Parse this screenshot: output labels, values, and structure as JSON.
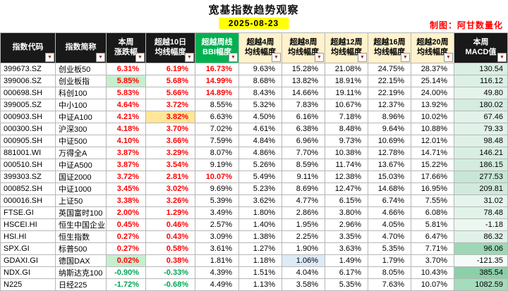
{
  "colors": {
    "up": "#ff0000",
    "down": "#00a651",
    "header_dark": "#191919",
    "header_green": "#00b050",
    "header_yellow": "#fff2cc",
    "date_bg": "#ffff00",
    "credit": "#ff0000"
  },
  "chart_data": {
    "type": "table",
    "title": "宽基指数趋势观察",
    "date": "2025-08-23",
    "credit": "制图：阿甘数量化",
    "columns": [
      {
        "id": "code",
        "label": "指数代码",
        "style": "dark",
        "w": 78
      },
      {
        "id": "name",
        "label": "指数简称",
        "style": "dark",
        "w": 72
      },
      {
        "id": "wk",
        "label": "本周\n涨跌幅",
        "style": "dark",
        "w": 56
      },
      {
        "id": "d10",
        "label": "超越10日\n均线幅度",
        "style": "dark",
        "w": 70
      },
      {
        "id": "bbi",
        "label": "超越周线\nBBI幅度",
        "style": "green",
        "w": 62
      },
      {
        "id": "w4",
        "label": "超越4周\n均线幅度",
        "style": "yellow",
        "w": 61
      },
      {
        "id": "w8",
        "label": "超越8周\n均线幅度",
        "style": "yellow",
        "w": 61
      },
      {
        "id": "w12",
        "label": "超越12周\n均线幅度",
        "style": "yellow",
        "w": 61
      },
      {
        "id": "w16",
        "label": "超越16周\n均线幅度",
        "style": "yellow",
        "w": 61
      },
      {
        "id": "w20",
        "label": "超越20周\n均线幅度",
        "style": "yellow",
        "w": 61
      },
      {
        "id": "macd",
        "label": "本周\nMACD值",
        "style": "dark",
        "w": 76
      }
    ],
    "rows": [
      {
        "code": "399673.SZ",
        "name": "创业板50",
        "wk": "6.31%",
        "d10": "6.19%",
        "bbi": "16.73%",
        "w4": "9.63%",
        "w8": "15.28%",
        "w12": "21.08%",
        "w16": "24.75%",
        "w20": "28.37%",
        "macd": "130.54",
        "macd_bg": "#dbefe4"
      },
      {
        "code": "399006.SZ",
        "name": "创业板指",
        "wk": "5.85%",
        "d10": "5.68%",
        "bbi": "14.99%",
        "w4": "8.68%",
        "w8": "13.82%",
        "w12": "18.91%",
        "w16": "22.15%",
        "w20": "25.14%",
        "macd": "116.12",
        "macd_bg": "#ddf0e6",
        "hl": {
          "wk": "#c6efce"
        }
      },
      {
        "code": "000698.SH",
        "name": "科创100",
        "wk": "5.83%",
        "d10": "5.66%",
        "bbi": "14.89%",
        "w4": "8.43%",
        "w8": "14.66%",
        "w12": "19.11%",
        "w16": "22.19%",
        "w20": "24.00%",
        "macd": "49.80",
        "macd_bg": "#e4f3eb"
      },
      {
        "code": "399005.SZ",
        "name": "中小100",
        "wk": "4.64%",
        "d10": "3.72%",
        "bbi": "8.55%",
        "w4": "5.32%",
        "w8": "7.83%",
        "w12": "10.67%",
        "w16": "12.37%",
        "w20": "13.92%",
        "macd": "180.02",
        "macd_bg": "#d5ece0"
      },
      {
        "code": "000903.SH",
        "name": "中证A100",
        "wk": "4.21%",
        "d10": "3.82%",
        "bbi": "6.63%",
        "w4": "4.50%",
        "w8": "6.16%",
        "w12": "7.18%",
        "w16": "8.96%",
        "w20": "10.02%",
        "macd": "67.46",
        "macd_bg": "#e2f2ea",
        "hl": {
          "d10": "#ffe699"
        }
      },
      {
        "code": "000300.SH",
        "name": "沪深300",
        "wk": "4.18%",
        "d10": "3.70%",
        "bbi": "7.02%",
        "w4": "4.61%",
        "w8": "6.38%",
        "w12": "8.48%",
        "w16": "9.64%",
        "w20": "10.88%",
        "macd": "79.33",
        "macd_bg": "#e1f2e9"
      },
      {
        "code": "000905.SH",
        "name": "中证500",
        "wk": "4.10%",
        "d10": "3.66%",
        "bbi": "7.59%",
        "w4": "4.84%",
        "w8": "6.96%",
        "w12": "9.73%",
        "w16": "10.69%",
        "w20": "12.01%",
        "macd": "98.48",
        "macd_bg": "#dff1e7"
      },
      {
        "code": "881001.WI",
        "name": "万得全A",
        "wk": "3.87%",
        "d10": "3.29%",
        "bbi": "8.07%",
        "w4": "4.86%",
        "w8": "7.70%",
        "w12": "10.38%",
        "w16": "12.78%",
        "w20": "14.71%",
        "macd": "146.21",
        "macd_bg": "#d9eee3"
      },
      {
        "code": "000510.SH",
        "name": "中证A500",
        "wk": "3.87%",
        "d10": "3.54%",
        "bbi": "9.19%",
        "w4": "5.26%",
        "w8": "8.59%",
        "w12": "11.74%",
        "w16": "13.67%",
        "w20": "15.22%",
        "macd": "186.15",
        "macd_bg": "#d4ecdf"
      },
      {
        "code": "399303.SZ",
        "name": "国证2000",
        "wk": "3.72%",
        "d10": "2.81%",
        "bbi": "10.07%",
        "w4": "5.49%",
        "w8": "9.11%",
        "w12": "12.38%",
        "w16": "15.03%",
        "w20": "17.66%",
        "macd": "277.53",
        "macd_bg": "#c8e6d6"
      },
      {
        "code": "000852.SH",
        "name": "中证1000",
        "wk": "3.45%",
        "d10": "3.02%",
        "bbi": "9.69%",
        "w4": "5.23%",
        "w8": "8.69%",
        "w12": "12.47%",
        "w16": "14.68%",
        "w20": "16.95%",
        "macd": "209.81",
        "macd_bg": "#d1eadd"
      },
      {
        "code": "000016.SH",
        "name": "上证50",
        "wk": "3.38%",
        "d10": "3.26%",
        "bbi": "5.39%",
        "w4": "3.62%",
        "w8": "4.77%",
        "w12": "6.15%",
        "w16": "6.74%",
        "w20": "7.55%",
        "macd": "31.02",
        "macd_bg": "#e5f4ec"
      },
      {
        "code": "FTSE.GI",
        "name": "英国富时100",
        "wk": "2.00%",
        "d10": "1.29%",
        "bbi": "3.49%",
        "w4": "1.80%",
        "w8": "2.86%",
        "w12": "3.80%",
        "w16": "4.66%",
        "w20": "6.08%",
        "macd": "78.48",
        "macd_bg": "#e1f2e9"
      },
      {
        "code": "HSCEI.HI",
        "name": "恒生中国企业",
        "wk": "0.45%",
        "d10": "0.46%",
        "bbi": "2.57%",
        "w4": "1.40%",
        "w8": "1.95%",
        "w12": "2.96%",
        "w16": "4.05%",
        "w20": "5.81%",
        "macd": "-1.18",
        "macd_bg": "#ecf7f1"
      },
      {
        "code": "HSI.HI",
        "name": "恒生指数",
        "wk": "0.27%",
        "d10": "0.43%",
        "bbi": "3.09%",
        "w4": "1.38%",
        "w8": "2.25%",
        "w12": "3.35%",
        "w16": "4.70%",
        "w20": "6.47%",
        "macd": "86.32",
        "macd_bg": "#e0f1e8"
      },
      {
        "code": "SPX.GI",
        "name": "标普500",
        "wk": "0.27%",
        "d10": "0.58%",
        "bbi": "3.61%",
        "w4": "1.27%",
        "w8": "1.90%",
        "w12": "3.63%",
        "w16": "5.35%",
        "w20": "7.71%",
        "macd": "96.06",
        "macd_bg": "#9ed7b6"
      },
      {
        "code": "GDAXI.GI",
        "name": "德国DAX",
        "wk": "0.02%",
        "d10": "0.38%",
        "bbi": "1.81%",
        "w4": "1.18%",
        "w8": "1.06%",
        "w12": "1.49%",
        "w16": "1.79%",
        "w20": "3.70%",
        "macd": "-121.35",
        "macd_bg": "#f5fbf8",
        "hl": {
          "wk": "#c6efce",
          "w8": "#ddebf7"
        }
      },
      {
        "code": "NDX.GI",
        "name": "纳斯达克100",
        "wk": "-0.90%",
        "d10": "-0.33%",
        "bbi": "4.39%",
        "w4": "1.51%",
        "w8": "4.04%",
        "w12": "6.17%",
        "w16": "8.05%",
        "w20": "10.43%",
        "macd": "385.54",
        "macd_bg": "#8ccfa8"
      },
      {
        "code": "N225",
        "name": "日经225",
        "wk": "-1.72%",
        "d10": "-0.68%",
        "bbi": "4.49%",
        "w4": "1.13%",
        "w8": "3.58%",
        "w12": "5.35%",
        "w16": "7.63%",
        "w20": "10.07%",
        "macd": "1082.59",
        "macd_bg": "#a5dcbc"
      }
    ]
  }
}
